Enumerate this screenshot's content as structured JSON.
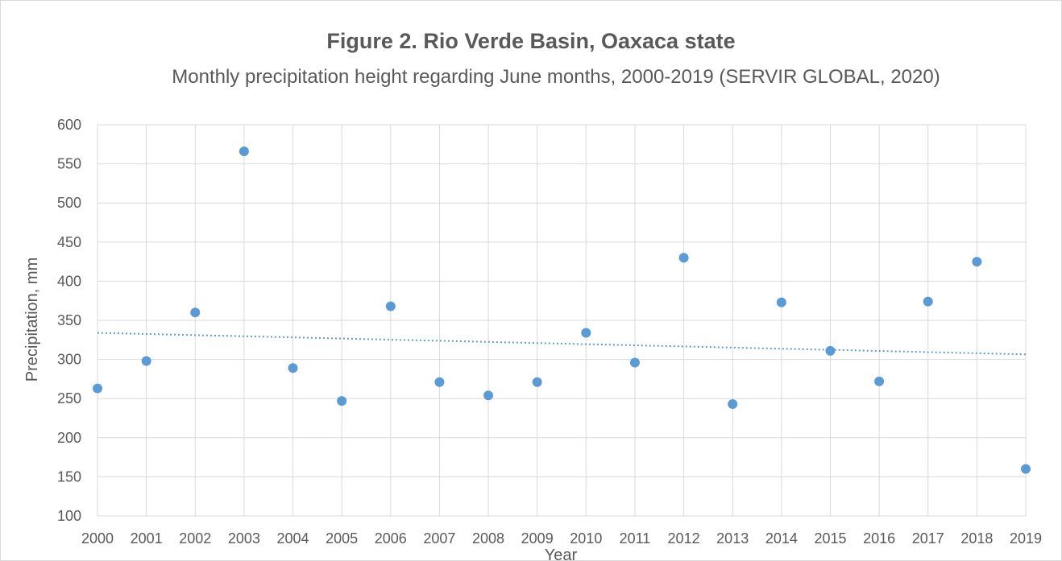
{
  "chart_data": {
    "type": "scatter",
    "title": "Figure 2.  Rio Verde Basin, Oaxaca state",
    "subtitle": "Monthly precipitation height regarding June months, 2000-2019  (SERVIR GLOBAL, 2020)",
    "xlabel": "Year",
    "ylabel": "Precipitation, mm",
    "x": [
      2000,
      2001,
      2002,
      2003,
      2004,
      2005,
      2006,
      2007,
      2008,
      2009,
      2010,
      2011,
      2012,
      2013,
      2014,
      2015,
      2016,
      2017,
      2018,
      2019
    ],
    "y": [
      263,
      298,
      360,
      566,
      289,
      247,
      368,
      271,
      254,
      271,
      334,
      296,
      430,
      243,
      373,
      311,
      272,
      374,
      425,
      160
    ],
    "xlim": [
      2000,
      2019
    ],
    "ylim": [
      100,
      600
    ],
    "yticks": [
      100,
      150,
      200,
      250,
      300,
      350,
      400,
      450,
      500,
      550,
      600
    ],
    "xticks": [
      2000,
      2001,
      2002,
      2003,
      2004,
      2005,
      2006,
      2007,
      2008,
      2009,
      2010,
      2011,
      2012,
      2013,
      2014,
      2015,
      2016,
      2017,
      2018,
      2019
    ],
    "trendline": {
      "type": "linear",
      "style": "dotted"
    },
    "grid": true,
    "colors": {
      "marker": "#5b9bd5",
      "trend": "#5b9bd5",
      "grid": "#d9d9d9",
      "text": "#595959"
    }
  }
}
